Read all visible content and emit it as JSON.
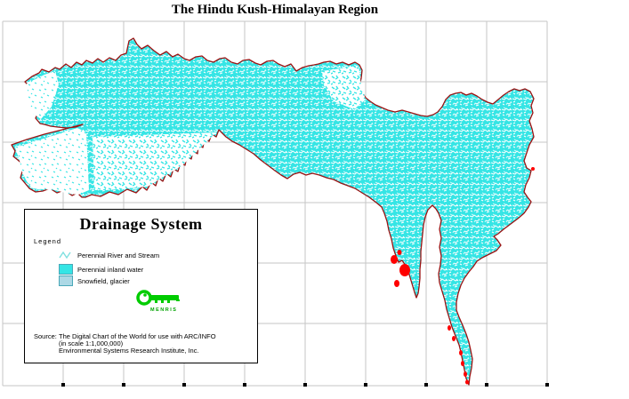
{
  "page": {
    "title": "The Hindu Kush-Himalayan Region"
  },
  "legend": {
    "title": "Drainage System",
    "caption": "Legend",
    "items": [
      {
        "label": "Perennial River and Stream"
      },
      {
        "label": "Perennial inland water"
      },
      {
        "label": "Snowfield, glacier"
      }
    ],
    "logo": {
      "text": "MENRIS"
    },
    "source": {
      "label": "Source:",
      "line1": "The Digital Chart of the World for use with ARC/INFO",
      "line2": "(in scale 1:1,000,000)",
      "line3": "Environmental Systems Research Institute, Inc."
    }
  },
  "colors": {
    "boundary": "#9B1212",
    "drainage_water": "#35E5E5",
    "river_line": "#7FE0E0",
    "snowfield": "#ACD8E5",
    "red_patch": "#FF0000",
    "logo_green": "#00CC00",
    "grid_line": "#C6C6C6"
  }
}
